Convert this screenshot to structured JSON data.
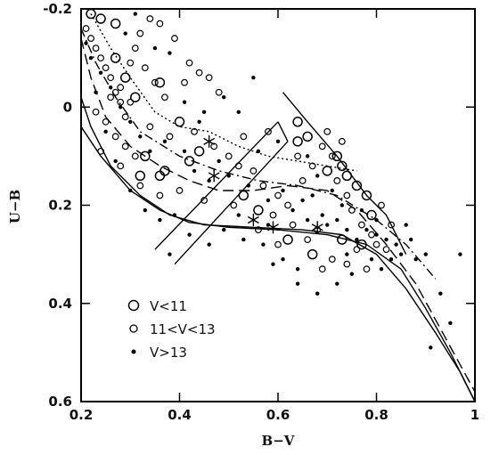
{
  "chart_data": {
    "type": "scatter",
    "xlabel": "B−V",
    "ylabel": "U−B",
    "xlim": [
      0.2,
      1.0
    ],
    "ylim": [
      -0.2,
      0.6
    ],
    "y_inverted": true,
    "x_ticks": [
      "0.2",
      "0.4",
      "0.6",
      "0.8",
      "1"
    ],
    "x_tick_values": [
      0.2,
      0.4,
      0.6,
      0.8,
      1.0
    ],
    "y_ticks": [
      "-0.2",
      "0",
      "0.2",
      "0.4",
      "0.6"
    ],
    "y_tick_values": [
      -0.2,
      0.0,
      0.2,
      0.4,
      0.6
    ],
    "grid": false,
    "legend_position": "lower-left",
    "legend": [
      {
        "label": "V<11",
        "marker": "large-open-circle"
      },
      {
        "label": "11<V<13",
        "marker": "small-open-circle"
      },
      {
        "label": "V>13",
        "marker": "dot"
      }
    ],
    "series": [
      {
        "name": "V<11",
        "marker": "large-open-circle",
        "points": [
          [
            0.22,
            -0.19
          ],
          [
            0.24,
            -0.18
          ],
          [
            0.27,
            -0.1
          ],
          [
            0.29,
            -0.06
          ],
          [
            0.31,
            -0.02
          ],
          [
            0.33,
            0.1
          ],
          [
            0.36,
            0.14
          ],
          [
            0.37,
            0.13
          ],
          [
            0.4,
            0.03
          ],
          [
            0.42,
            0.11
          ],
          [
            0.44,
            0.09
          ],
          [
            0.53,
            0.18
          ],
          [
            0.64,
            0.03
          ],
          [
            0.66,
            0.06
          ],
          [
            0.7,
            0.13
          ],
          [
            0.73,
            0.12
          ],
          [
            0.74,
            0.14
          ],
          [
            0.76,
            0.16
          ],
          [
            0.78,
            0.18
          ],
          [
            0.79,
            0.22
          ],
          [
            0.77,
            0.28
          ],
          [
            0.73,
            0.27
          ],
          [
            0.67,
            0.3
          ],
          [
            0.72,
            0.1
          ],
          [
            0.56,
            0.21
          ],
          [
            0.64,
            0.07
          ],
          [
            0.27,
            -0.17
          ],
          [
            0.32,
            0.14
          ],
          [
            0.36,
            -0.05
          ],
          [
            0.62,
            0.27
          ]
        ]
      },
      {
        "name": "11<V<13",
        "marker": "small-open-circle",
        "points": [
          [
            0.21,
            -0.16
          ],
          [
            0.22,
            -0.14
          ],
          [
            0.23,
            -0.12
          ],
          [
            0.24,
            -0.1
          ],
          [
            0.25,
            -0.08
          ],
          [
            0.26,
            -0.06
          ],
          [
            0.27,
            -0.03
          ],
          [
            0.28,
            -0.01
          ],
          [
            0.29,
            0.02
          ],
          [
            0.3,
            -0.09
          ],
          [
            0.31,
            -0.12
          ],
          [
            0.32,
            -0.15
          ],
          [
            0.34,
            -0.18
          ],
          [
            0.36,
            -0.17
          ],
          [
            0.39,
            -0.14
          ],
          [
            0.42,
            -0.09
          ],
          [
            0.44,
            -0.07
          ],
          [
            0.46,
            -0.06
          ],
          [
            0.48,
            -0.03
          ],
          [
            0.33,
            -0.08
          ],
          [
            0.35,
            -0.05
          ],
          [
            0.37,
            -0.02
          ],
          [
            0.41,
            -0.05
          ],
          [
            0.25,
            0.03
          ],
          [
            0.27,
            0.06
          ],
          [
            0.29,
            0.08
          ],
          [
            0.31,
            0.1
          ],
          [
            0.23,
            0.01
          ],
          [
            0.26,
            -0.02
          ],
          [
            0.28,
            -0.04
          ],
          [
            0.3,
            -0.01
          ],
          [
            0.34,
            0.04
          ],
          [
            0.38,
            0.06
          ],
          [
            0.43,
            0.05
          ],
          [
            0.47,
            0.08
          ],
          [
            0.5,
            0.1
          ],
          [
            0.52,
            0.12
          ],
          [
            0.55,
            0.13
          ],
          [
            0.57,
            0.16
          ],
          [
            0.6,
            0.18
          ],
          [
            0.62,
            0.2
          ],
          [
            0.65,
            0.15
          ],
          [
            0.67,
            0.12
          ],
          [
            0.69,
            0.08
          ],
          [
            0.71,
            0.1
          ],
          [
            0.72,
            0.15
          ],
          [
            0.74,
            0.18
          ],
          [
            0.75,
            0.21
          ],
          [
            0.77,
            0.24
          ],
          [
            0.79,
            0.26
          ],
          [
            0.8,
            0.28
          ],
          [
            0.82,
            0.29
          ],
          [
            0.83,
            0.24
          ],
          [
            0.81,
            0.2
          ],
          [
            0.69,
            0.33
          ],
          [
            0.71,
            0.31
          ],
          [
            0.74,
            0.32
          ],
          [
            0.78,
            0.33
          ],
          [
            0.66,
            0.27
          ],
          [
            0.63,
            0.24
          ],
          [
            0.59,
            0.22
          ],
          [
            0.56,
            0.25
          ],
          [
            0.6,
            0.28
          ],
          [
            0.51,
            0.2
          ],
          [
            0.45,
            0.19
          ],
          [
            0.4,
            0.17
          ],
          [
            0.36,
            0.18
          ],
          [
            0.32,
            0.16
          ],
          [
            0.28,
            0.12
          ],
          [
            0.24,
            0.09
          ],
          [
            0.53,
            0.06
          ],
          [
            0.58,
            0.05
          ],
          [
            0.64,
            0.1
          ],
          [
            0.68,
            0.25
          ],
          [
            0.76,
            0.29
          ],
          [
            0.7,
            0.05
          ],
          [
            0.73,
            0.07
          ]
        ]
      },
      {
        "name": "V>13",
        "marker": "dot",
        "points": [
          [
            0.21,
            -0.13
          ],
          [
            0.22,
            -0.1
          ],
          [
            0.24,
            -0.07
          ],
          [
            0.26,
            -0.04
          ],
          [
            0.28,
            0.0
          ],
          [
            0.3,
            0.03
          ],
          [
            0.32,
            0.06
          ],
          [
            0.34,
            0.09
          ],
          [
            0.27,
            0.11
          ],
          [
            0.25,
            0.05
          ],
          [
            0.23,
            -0.03
          ],
          [
            0.29,
            -0.15
          ],
          [
            0.31,
            -0.19
          ],
          [
            0.35,
            -0.12
          ],
          [
            0.38,
            -0.11
          ],
          [
            0.41,
            -0.01
          ],
          [
            0.45,
            0.01
          ],
          [
            0.49,
            -0.02
          ],
          [
            0.52,
            0.01
          ],
          [
            0.55,
            -0.06
          ],
          [
            0.43,
            0.13
          ],
          [
            0.46,
            0.15
          ],
          [
            0.48,
            0.11
          ],
          [
            0.5,
            0.14
          ],
          [
            0.54,
            0.16
          ],
          [
            0.58,
            0.19
          ],
          [
            0.61,
            0.17
          ],
          [
            0.63,
            0.21
          ],
          [
            0.65,
            0.19
          ],
          [
            0.67,
            0.18
          ],
          [
            0.69,
            0.22
          ],
          [
            0.7,
            0.24
          ],
          [
            0.72,
            0.23
          ],
          [
            0.74,
            0.25
          ],
          [
            0.76,
            0.27
          ],
          [
            0.78,
            0.25
          ],
          [
            0.8,
            0.26
          ],
          [
            0.82,
            0.27
          ],
          [
            0.84,
            0.28
          ],
          [
            0.85,
            0.3
          ],
          [
            0.86,
            0.24
          ],
          [
            0.87,
            0.27
          ],
          [
            0.83,
            0.31
          ],
          [
            0.81,
            0.33
          ],
          [
            0.79,
            0.31
          ],
          [
            0.75,
            0.34
          ],
          [
            0.72,
            0.36
          ],
          [
            0.68,
            0.38
          ],
          [
            0.64,
            0.33
          ],
          [
            0.61,
            0.31
          ],
          [
            0.57,
            0.28
          ],
          [
            0.53,
            0.27
          ],
          [
            0.49,
            0.25
          ],
          [
            0.46,
            0.28
          ],
          [
            0.42,
            0.26
          ],
          [
            0.39,
            0.22
          ],
          [
            0.36,
            0.23
          ],
          [
            0.33,
            0.21
          ],
          [
            0.3,
            0.17
          ],
          [
            0.37,
            0.07
          ],
          [
            0.44,
            0.03
          ],
          [
            0.56,
            0.09
          ],
          [
            0.6,
            0.07
          ],
          [
            0.66,
            0.1
          ],
          [
            0.68,
            0.14
          ],
          [
            0.71,
            0.17
          ],
          [
            0.73,
            0.2
          ],
          [
            0.77,
            0.21
          ],
          [
            0.8,
            0.23
          ],
          [
            0.88,
            0.31
          ],
          [
            0.9,
            0.3
          ],
          [
            0.93,
            0.38
          ],
          [
            0.95,
            0.44
          ],
          [
            0.97,
            0.3
          ],
          [
            0.91,
            0.49
          ],
          [
            0.74,
            0.3
          ],
          [
            0.59,
            0.32
          ],
          [
            0.64,
            0.36
          ],
          [
            0.38,
            0.3
          ],
          [
            0.52,
            0.22
          ],
          [
            0.58,
            0.24
          ],
          [
            0.66,
            0.23
          ],
          [
            0.41,
            0.09
          ]
        ]
      }
    ],
    "curves": [
      {
        "style": "solid",
        "points": [
          [
            0.2,
            0.04
          ],
          [
            0.24,
            0.1
          ],
          [
            0.3,
            0.17
          ],
          [
            0.36,
            0.21
          ],
          [
            0.42,
            0.235
          ],
          [
            0.5,
            0.245
          ],
          [
            0.6,
            0.25
          ],
          [
            0.7,
            0.26
          ],
          [
            0.78,
            0.28
          ],
          [
            0.85,
            0.33
          ],
          [
            0.9,
            0.41
          ],
          [
            0.95,
            0.5
          ],
          [
            1.0,
            0.6
          ]
        ]
      },
      {
        "style": "solid",
        "points": [
          [
            0.2,
            -0.02
          ],
          [
            0.22,
            0.04
          ],
          [
            0.26,
            0.12
          ],
          [
            0.32,
            0.18
          ],
          [
            0.38,
            0.22
          ],
          [
            0.45,
            0.24
          ],
          [
            0.55,
            0.245
          ],
          [
            0.65,
            0.25
          ],
          [
            0.73,
            0.26
          ],
          [
            0.8,
            0.3
          ],
          [
            0.86,
            0.37
          ],
          [
            0.92,
            0.46
          ],
          [
            0.97,
            0.54
          ],
          [
            1.0,
            0.6
          ]
        ]
      },
      {
        "style": "long-dash",
        "points": [
          [
            0.2,
            -0.14
          ],
          [
            0.22,
            -0.06
          ],
          [
            0.25,
            0.02
          ],
          [
            0.3,
            0.08
          ],
          [
            0.36,
            0.12
          ],
          [
            0.42,
            0.15
          ],
          [
            0.48,
            0.17
          ],
          [
            0.55,
            0.17
          ],
          [
            0.62,
            0.16
          ],
          [
            0.7,
            0.17
          ],
          [
            0.76,
            0.21
          ],
          [
            0.82,
            0.28
          ],
          [
            0.88,
            0.36
          ],
          [
            0.94,
            0.47
          ],
          [
            1.0,
            0.58
          ]
        ]
      },
      {
        "style": "dash-dot",
        "points": [
          [
            0.2,
            -0.16
          ],
          [
            0.23,
            -0.09
          ],
          [
            0.27,
            -0.02
          ],
          [
            0.32,
            0.05
          ],
          [
            0.4,
            0.1
          ],
          [
            0.48,
            0.13
          ],
          [
            0.56,
            0.15
          ],
          [
            0.64,
            0.16
          ],
          [
            0.72,
            0.18
          ],
          [
            0.8,
            0.23
          ],
          [
            0.86,
            0.28
          ],
          [
            0.92,
            0.35
          ]
        ]
      },
      {
        "style": "dotted",
        "points": [
          [
            0.22,
            -0.19
          ],
          [
            0.26,
            -0.12
          ],
          [
            0.3,
            -0.06
          ],
          [
            0.35,
            0.01
          ],
          [
            0.4,
            0.04
          ],
          [
            0.46,
            0.05
          ],
          [
            0.52,
            0.08
          ],
          [
            0.58,
            0.1
          ],
          [
            0.64,
            0.11
          ],
          [
            0.7,
            0.12
          ],
          [
            0.76,
            0.13
          ]
        ]
      },
      {
        "style": "solid",
        "points": [
          [
            0.61,
            -0.03
          ],
          [
            0.66,
            0.03
          ],
          [
            0.72,
            0.1
          ],
          [
            0.78,
            0.18
          ],
          [
            0.82,
            0.22
          ],
          [
            0.86,
            0.3
          ]
        ]
      },
      {
        "style": "solid",
        "points": [
          [
            0.35,
            0.29
          ],
          [
            0.6,
            0.03
          ]
        ]
      },
      {
        "style": "solid",
        "points": [
          [
            0.39,
            0.32
          ],
          [
            0.62,
            0.07
          ]
        ]
      },
      {
        "style": "solid",
        "points": [
          [
            0.6,
            0.03
          ],
          [
            0.62,
            0.07
          ]
        ]
      }
    ],
    "star_markers": [
      [
        0.46,
        0.07
      ],
      [
        0.47,
        0.14
      ],
      [
        0.55,
        0.23
      ],
      [
        0.59,
        0.245
      ],
      [
        0.68,
        0.245
      ]
    ]
  }
}
